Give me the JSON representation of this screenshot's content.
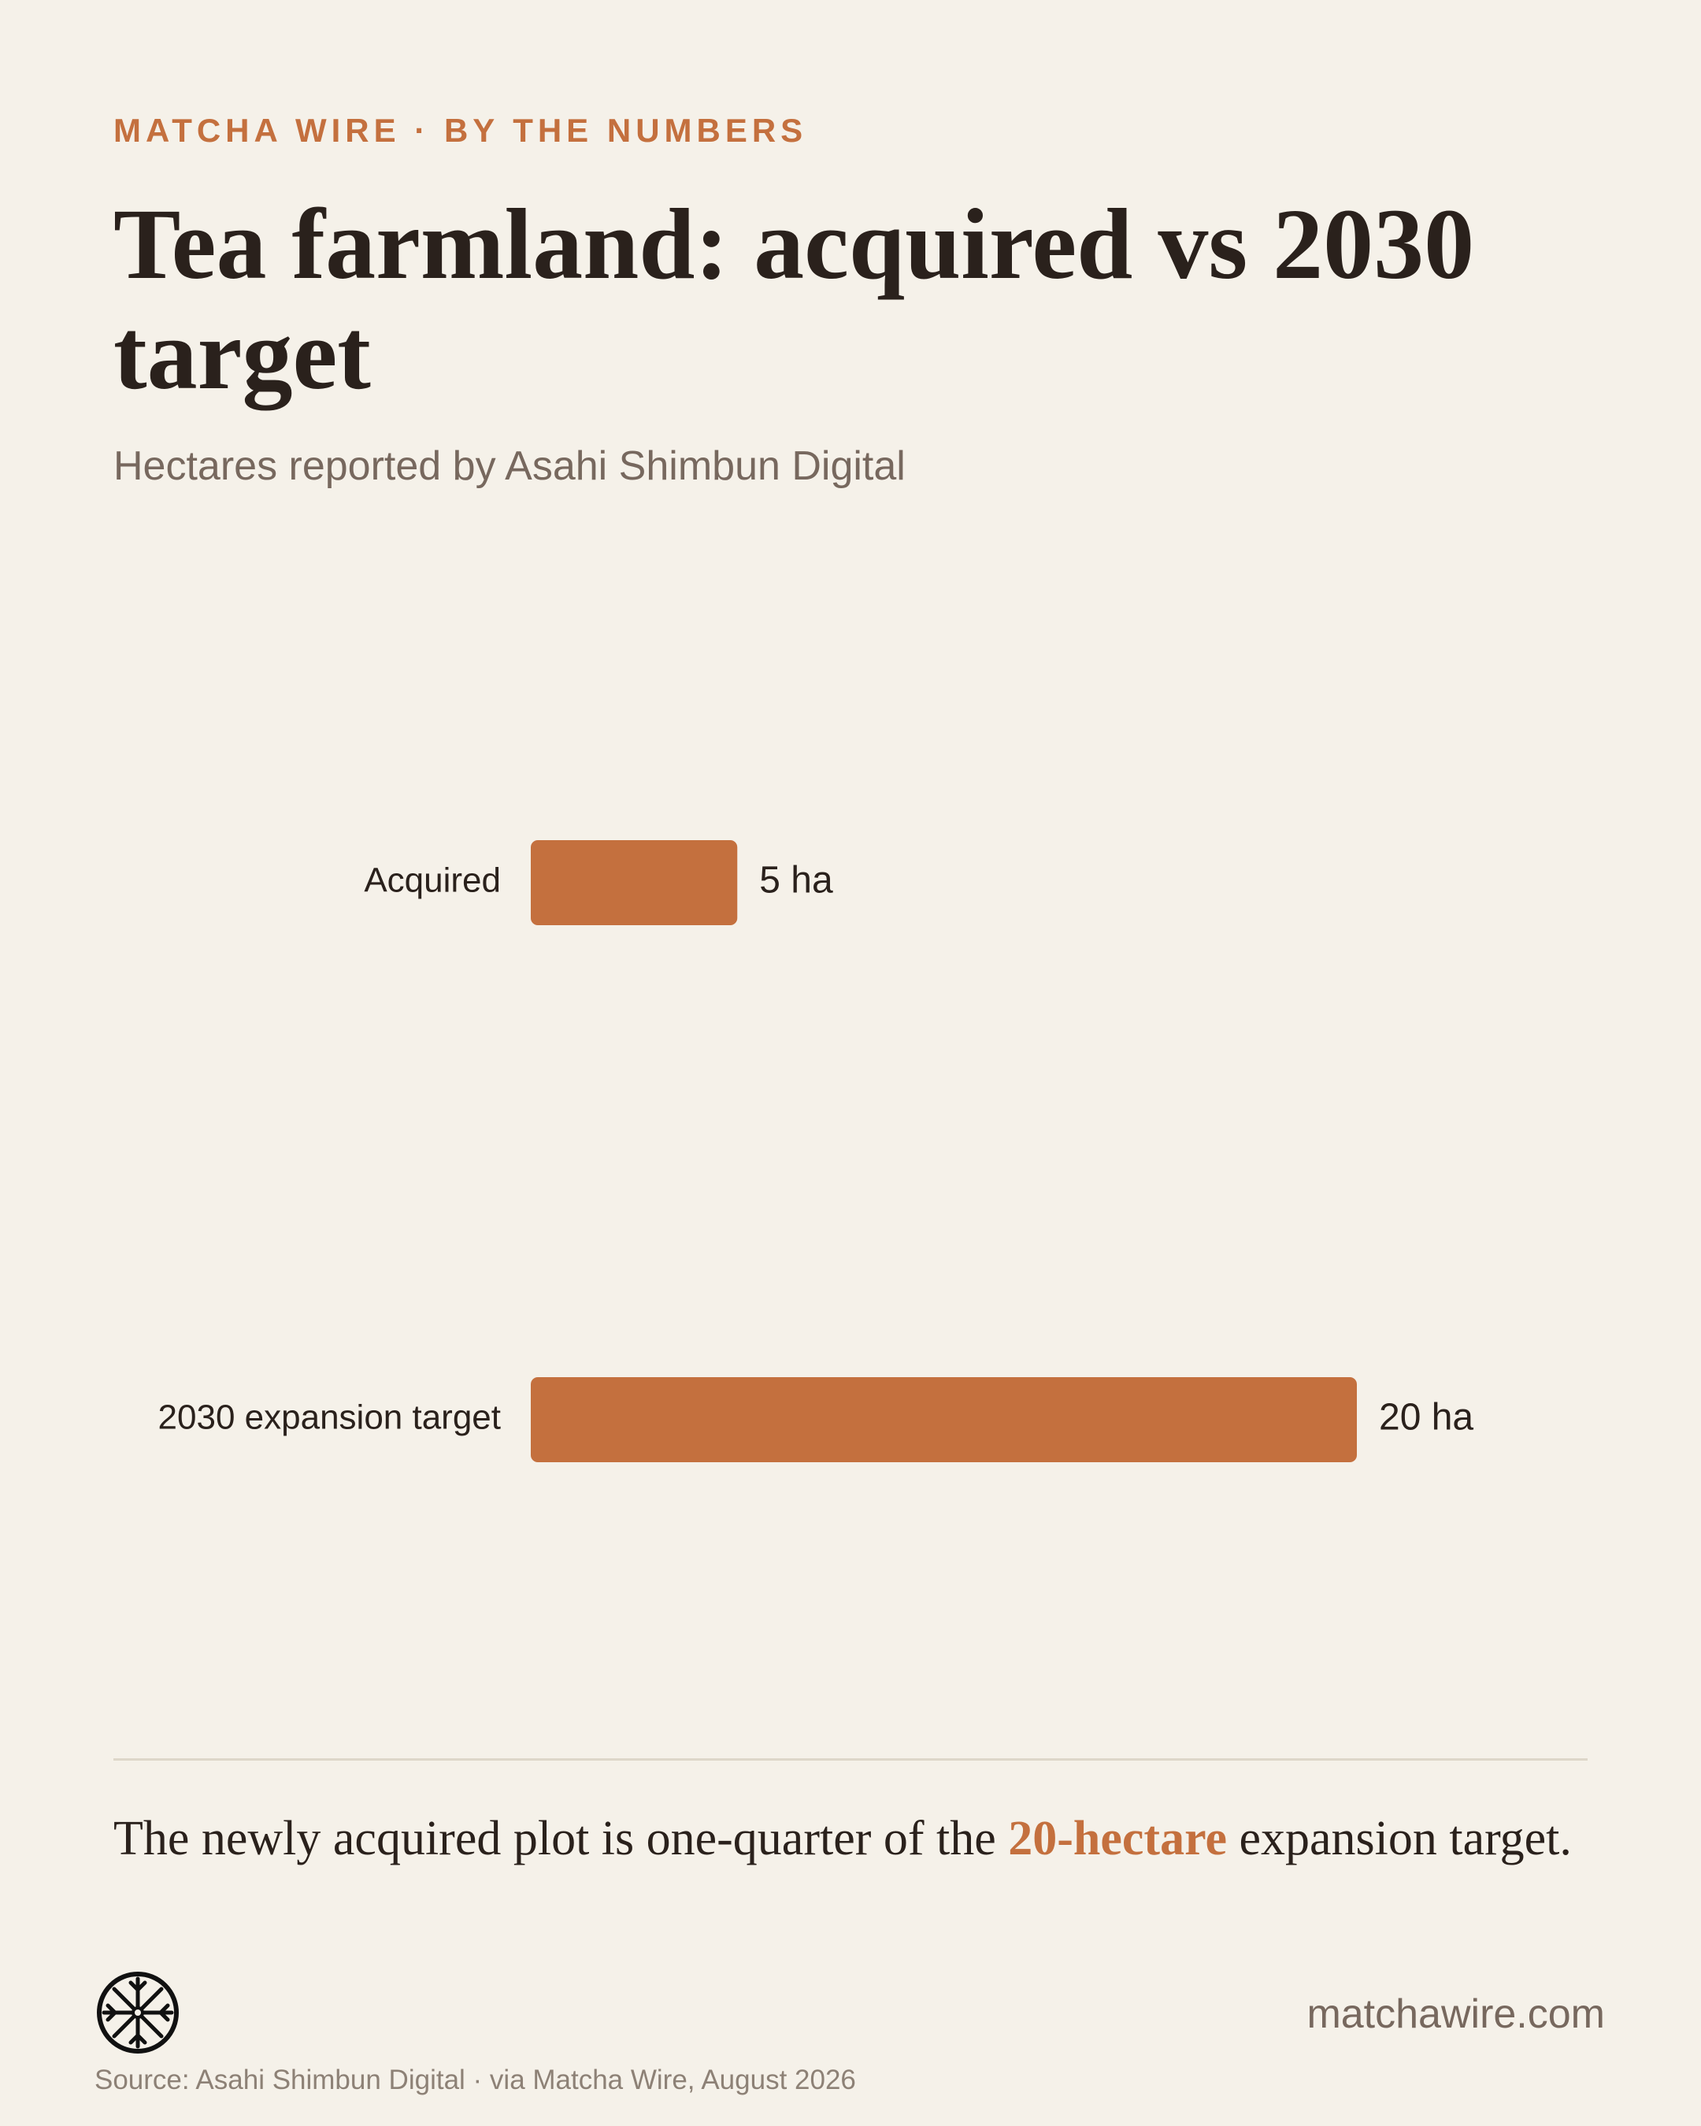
{
  "header": {
    "kicker": "MATCHA WIRE · BY THE NUMBERS",
    "title": "Tea farmland: acquired vs 2030 target",
    "subtitle": "Hectares reported by Asahi Shimbun Digital"
  },
  "chart_data": {
    "type": "bar",
    "orientation": "horizontal",
    "categories": [
      "Acquired",
      "2030 expansion target"
    ],
    "values": [
      5,
      20
    ],
    "value_labels": [
      "5 ha",
      "20 ha"
    ],
    "unit": "ha",
    "xlim": [
      0,
      20
    ],
    "grid": false,
    "legend": "none",
    "bar_color": "#c4703e"
  },
  "takeaway": {
    "before": "The newly acquired plot is one-quarter of the ",
    "highlight": "20-hectare",
    "after": " expansion target."
  },
  "footer": {
    "logo": "tea-wheel-logo",
    "site": "matchawire.com",
    "source": "Source: Asahi Shimbun Digital · via Matcha Wire, August 2026"
  },
  "colors": {
    "background": "#f5f1e9",
    "accent": "#c4703e",
    "text": "#2a211c",
    "muted": "#77685e"
  }
}
